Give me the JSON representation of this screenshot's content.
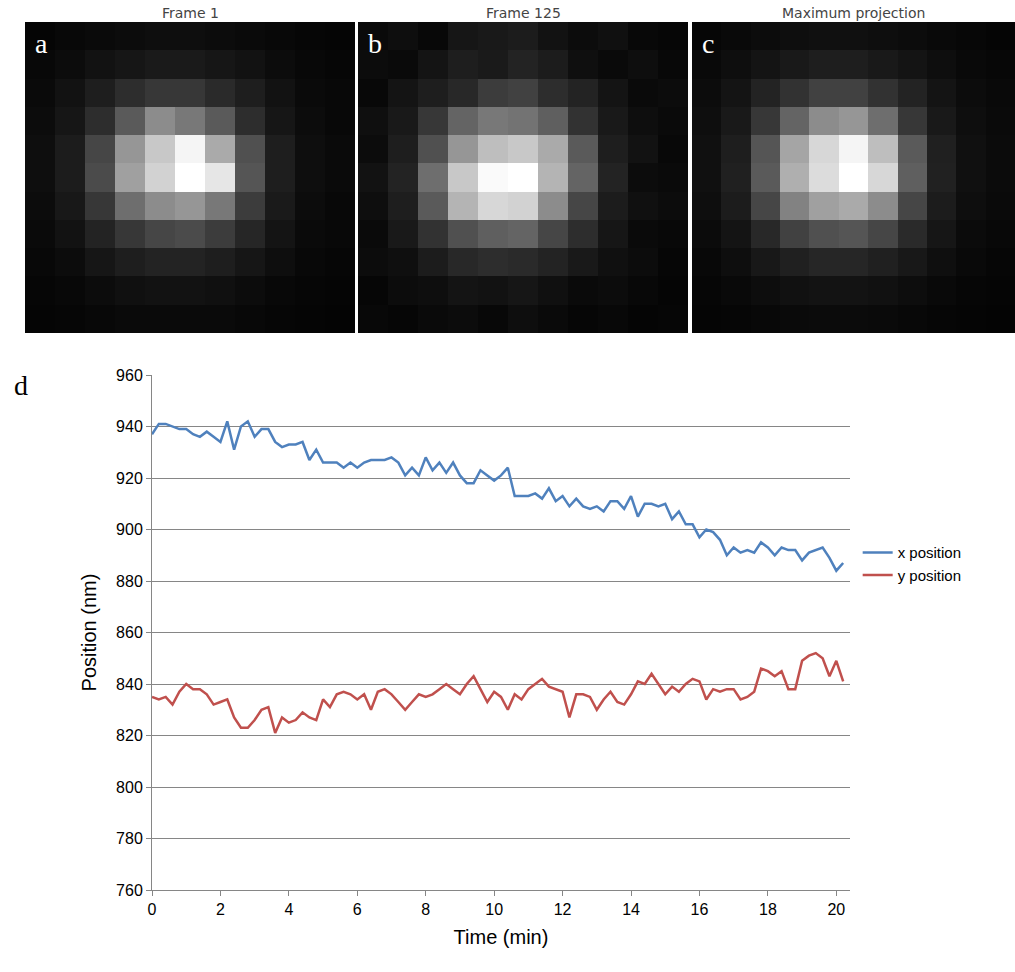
{
  "chart_data": [
    {
      "type": "heatmap",
      "title": "Frame 1",
      "annotation": "a",
      "color": "gray",
      "tick_labels": false,
      "grid": false,
      "zlim": [
        0,
        255
      ],
      "cells": [
        [
          5,
          8,
          10,
          12,
          14,
          14,
          12,
          10,
          8,
          6,
          5
        ],
        [
          8,
          12,
          18,
          22,
          26,
          26,
          22,
          18,
          12,
          8,
          6
        ],
        [
          10,
          18,
          30,
          45,
          55,
          55,
          42,
          30,
          18,
          10,
          8
        ],
        [
          12,
          22,
          45,
          90,
          140,
          120,
          90,
          45,
          22,
          12,
          8
        ],
        [
          14,
          28,
          70,
          150,
          200,
          245,
          170,
          80,
          30,
          14,
          10
        ],
        [
          14,
          28,
          75,
          160,
          210,
          255,
          230,
          85,
          30,
          14,
          10
        ],
        [
          12,
          24,
          55,
          110,
          140,
          150,
          120,
          60,
          26,
          12,
          8
        ],
        [
          10,
          18,
          35,
          55,
          70,
          75,
          60,
          38,
          20,
          10,
          8
        ],
        [
          8,
          12,
          22,
          30,
          35,
          35,
          30,
          22,
          14,
          8,
          6
        ],
        [
          6,
          8,
          12,
          16,
          18,
          18,
          16,
          12,
          8,
          6,
          5
        ],
        [
          5,
          6,
          8,
          10,
          10,
          10,
          10,
          8,
          6,
          5,
          4
        ]
      ]
    },
    {
      "type": "heatmap",
      "title": "Frame 125",
      "annotation": "b",
      "color": "gray",
      "tick_labels": false,
      "grid": false,
      "zlim": [
        0,
        255
      ],
      "cells": [
        [
          10,
          14,
          8,
          22,
          25,
          28,
          18,
          12,
          16,
          8,
          6
        ],
        [
          12,
          10,
          20,
          30,
          26,
          35,
          28,
          15,
          10,
          14,
          8
        ],
        [
          8,
          20,
          30,
          40,
          60,
          65,
          45,
          35,
          20,
          10,
          12
        ],
        [
          15,
          25,
          55,
          100,
          120,
          115,
          95,
          50,
          25,
          14,
          10
        ],
        [
          12,
          30,
          80,
          150,
          190,
          200,
          170,
          90,
          30,
          18,
          8
        ],
        [
          18,
          35,
          110,
          200,
          250,
          255,
          180,
          100,
          35,
          12,
          10
        ],
        [
          14,
          30,
          90,
          180,
          215,
          210,
          140,
          70,
          28,
          16,
          12
        ],
        [
          10,
          25,
          50,
          80,
          95,
          100,
          70,
          45,
          22,
          10,
          8
        ],
        [
          12,
          15,
          28,
          40,
          45,
          42,
          35,
          25,
          16,
          12,
          6
        ],
        [
          6,
          12,
          14,
          20,
          18,
          22,
          16,
          10,
          12,
          8,
          5
        ],
        [
          8,
          6,
          10,
          12,
          8,
          14,
          10,
          6,
          8,
          5,
          6
        ]
      ]
    },
    {
      "type": "heatmap",
      "title": "Maximum projection",
      "annotation": "c",
      "color": "gray",
      "tick_labels": false,
      "grid": false,
      "zlim": [
        0,
        255
      ],
      "cells": [
        [
          6,
          9,
          12,
          14,
          16,
          16,
          14,
          12,
          9,
          7,
          5
        ],
        [
          9,
          14,
          20,
          25,
          30,
          30,
          25,
          20,
          14,
          9,
          7
        ],
        [
          12,
          20,
          35,
          50,
          65,
          65,
          50,
          35,
          20,
          12,
          9
        ],
        [
          14,
          25,
          55,
          100,
          140,
          150,
          110,
          55,
          25,
          14,
          10
        ],
        [
          16,
          30,
          85,
          165,
          215,
          245,
          190,
          90,
          32,
          16,
          11
        ],
        [
          16,
          32,
          90,
          175,
          220,
          255,
          215,
          95,
          33,
          16,
          11
        ],
        [
          14,
          28,
          70,
          130,
          160,
          170,
          140,
          70,
          28,
          14,
          10
        ],
        [
          11,
          20,
          40,
          65,
          80,
          85,
          70,
          42,
          22,
          11,
          8
        ],
        [
          8,
          14,
          24,
          32,
          38,
          38,
          32,
          24,
          15,
          9,
          6
        ],
        [
          6,
          9,
          13,
          17,
          19,
          19,
          17,
          13,
          9,
          6,
          5
        ],
        [
          5,
          6,
          8,
          10,
          11,
          11,
          10,
          8,
          6,
          5,
          4
        ]
      ]
    },
    {
      "type": "line",
      "annotation": "d",
      "xlabel": "Time (min)",
      "ylabel": "Position (nm)",
      "grid": true,
      "legend": "right",
      "xlim": [
        0,
        20.4
      ],
      "xticks": [
        0,
        2,
        4,
        6,
        8,
        10,
        12,
        14,
        16,
        18,
        20
      ],
      "ylim": [
        760,
        960
      ],
      "yticks": [
        760,
        780,
        800,
        820,
        840,
        860,
        880,
        900,
        920,
        940,
        960
      ],
      "x": [
        0,
        0.2,
        0.4,
        0.6,
        0.8,
        1,
        1.2,
        1.4,
        1.6,
        1.8,
        2,
        2.2,
        2.4,
        2.6,
        2.8,
        3,
        3.2,
        3.4,
        3.6,
        3.8,
        4,
        4.2,
        4.4,
        4.6,
        4.8,
        5,
        5.2,
        5.4,
        5.6,
        5.8,
        6,
        6.2,
        6.4,
        6.6,
        6.8,
        7,
        7.2,
        7.4,
        7.6,
        7.8,
        8,
        8.2,
        8.4,
        8.6,
        8.8,
        9,
        9.2,
        9.4,
        9.6,
        9.8,
        10,
        10.2,
        10.4,
        10.6,
        10.8,
        11,
        11.2,
        11.4,
        11.6,
        11.8,
        12,
        12.2,
        12.4,
        12.6,
        12.8,
        13,
        13.2,
        13.4,
        13.6,
        13.8,
        14,
        14.2,
        14.4,
        14.6,
        14.8,
        15,
        15.2,
        15.4,
        15.6,
        15.8,
        16,
        16.2,
        16.4,
        16.6,
        16.8,
        17,
        17.2,
        17.4,
        17.6,
        17.8,
        18,
        18.2,
        18.4,
        18.6,
        18.8,
        19,
        19.2,
        19.4,
        19.6,
        19.8,
        20,
        20.2
      ],
      "series": [
        {
          "name": "x position",
          "color": "#4f81bd",
          "values": [
            937,
            941,
            941,
            940,
            939,
            939,
            937,
            936,
            938,
            936,
            934,
            942,
            931,
            940,
            942,
            936,
            939,
            939,
            934,
            932,
            933,
            933,
            934,
            927,
            931,
            926,
            926,
            926,
            924,
            926,
            924,
            926,
            927,
            927,
            927,
            928,
            926,
            921,
            924,
            921,
            928,
            923,
            926,
            922,
            926,
            921,
            918,
            918,
            923,
            921,
            919,
            921,
            924,
            913,
            913,
            913,
            914,
            912,
            916,
            911,
            913,
            909,
            912,
            909,
            908,
            909,
            907,
            911,
            911,
            908,
            913,
            905,
            910,
            910,
            909,
            910,
            904,
            907,
            902,
            902,
            897,
            900,
            899,
            896,
            890,
            893,
            891,
            892,
            891,
            895,
            893,
            890,
            893,
            892,
            892,
            888,
            891,
            892,
            893,
            889,
            884,
            887
          ]
        },
        {
          "name": "y position",
          "color": "#c0504d",
          "values": [
            835,
            834,
            835,
            832,
            837,
            840,
            838,
            838,
            836,
            832,
            833,
            834,
            827,
            823,
            823,
            826,
            830,
            831,
            821,
            827,
            825,
            826,
            829,
            827,
            826,
            834,
            831,
            836,
            837,
            836,
            834,
            836,
            830,
            837,
            838,
            836,
            833,
            830,
            833,
            836,
            835,
            836,
            838,
            840,
            838,
            836,
            840,
            843,
            838,
            833,
            837,
            835,
            830,
            836,
            834,
            838,
            840,
            842,
            839,
            838,
            837,
            827,
            836,
            836,
            835,
            830,
            834,
            837,
            833,
            832,
            836,
            841,
            840,
            844,
            840,
            836,
            839,
            837,
            840,
            842,
            841,
            834,
            838,
            837,
            838,
            838,
            834,
            835,
            837,
            846,
            845,
            843,
            845,
            838,
            838,
            849,
            851,
            852,
            850,
            843,
            849,
            841
          ]
        }
      ]
    }
  ]
}
